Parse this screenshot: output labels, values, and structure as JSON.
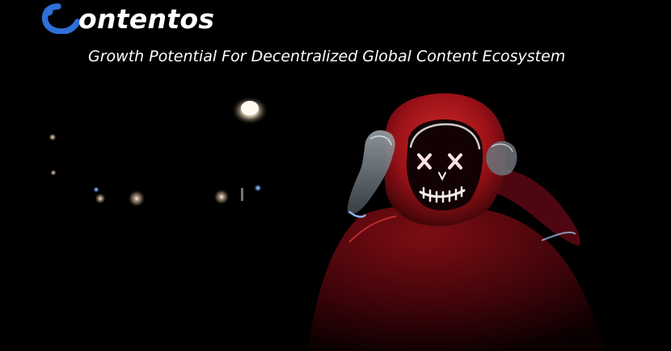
{
  "brand": {
    "name": "ontentos",
    "logo_initial": "C",
    "tagline": "Growth Potential For Decentralized Global Content Ecosystem"
  },
  "colors": {
    "background": "#000000",
    "brand_blue": "#2f6fd8",
    "text": "#ffffff",
    "hood_red": "#b0141c",
    "neon_white": "#f4f1f0"
  },
  "icons": {
    "logo": "contentos-c-logo-icon"
  },
  "image": {
    "subject": "masked-figure-photo"
  }
}
